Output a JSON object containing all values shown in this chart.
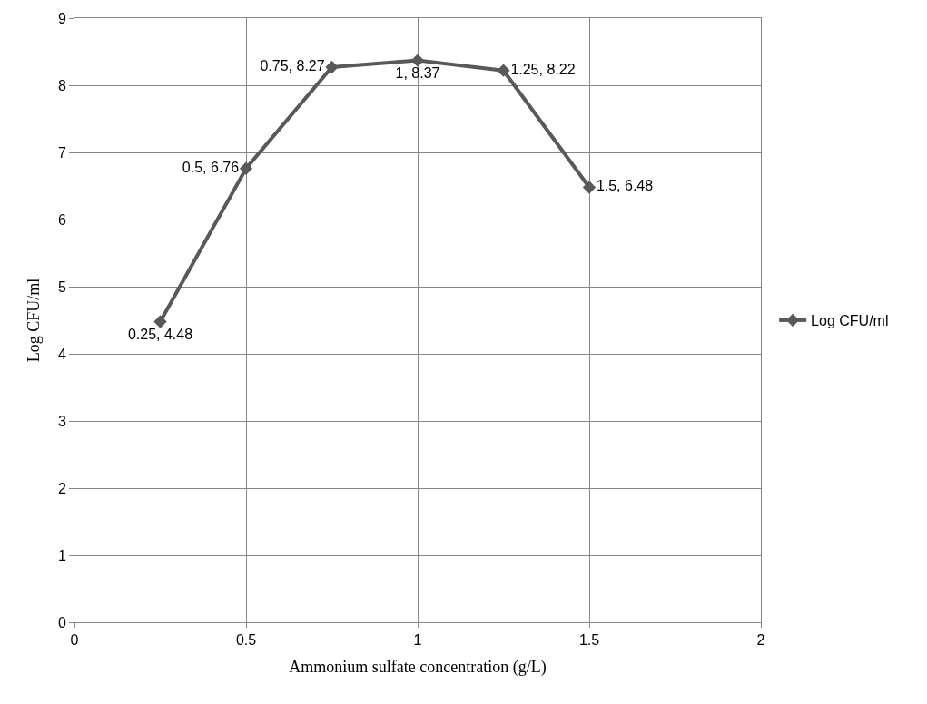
{
  "chart_data": {
    "type": "line",
    "xlabel": "Ammonium sulfate concentration (g/L)",
    "ylabel": "Log CFU/ml",
    "x": [
      0.25,
      0.5,
      0.75,
      1,
      1.25,
      1.5
    ],
    "series": [
      {
        "name": "Log CFU/ml",
        "color": "#595959",
        "values": [
          4.48,
          6.76,
          8.27,
          8.37,
          8.22,
          6.48
        ],
        "value_labels": [
          "0.25, 4.48",
          "0.5, 6.76",
          "0.75, 8.27",
          "1, 8.37",
          "1.25, 8.22",
          "1.5, 6.48"
        ]
      }
    ],
    "xlim": [
      0,
      2
    ],
    "xticks": [
      0,
      0.5,
      1,
      1.5,
      2
    ],
    "ylim": [
      0,
      9
    ],
    "yticks": [
      0,
      1,
      2,
      3,
      4,
      5,
      6,
      7,
      8,
      9
    ],
    "grid": true,
    "legend": "right",
    "marker": "diamond",
    "line_style": "solid"
  }
}
